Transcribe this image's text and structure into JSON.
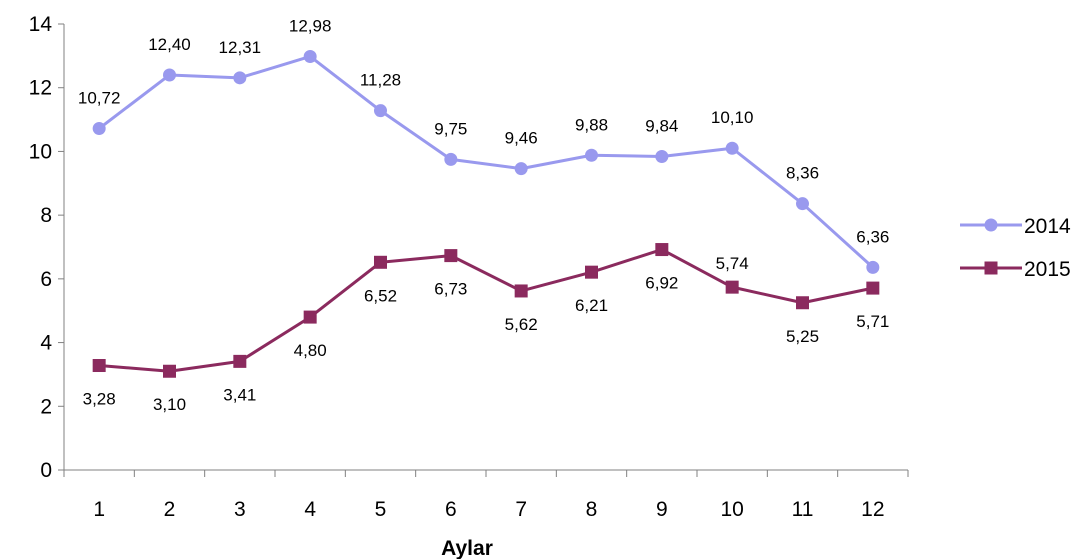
{
  "chart_data": {
    "type": "line",
    "xlabel": "Aylar",
    "categories": [
      "1",
      "2",
      "3",
      "4",
      "5",
      "6",
      "7",
      "8",
      "9",
      "10",
      "11",
      "12"
    ],
    "ylim": [
      0,
      14
    ],
    "yticks": [
      0,
      2,
      4,
      6,
      8,
      10,
      12,
      14
    ],
    "grid": false,
    "legend_position": "right",
    "series": [
      {
        "name": "2014",
        "color": "#9999ee",
        "marker": "circle",
        "values": [
          10.72,
          12.4,
          12.31,
          12.98,
          11.28,
          9.75,
          9.46,
          9.88,
          9.84,
          10.1,
          8.36,
          6.36
        ],
        "labels": [
          "10,72",
          "12,40",
          "12,31",
          "12,98",
          "11,28",
          "9,75",
          "9,46",
          "9,88",
          "9,84",
          "10,10",
          "8,36",
          "6,36"
        ]
      },
      {
        "name": "2015",
        "color": "#8b2a5e",
        "marker": "square",
        "values": [
          3.28,
          3.1,
          3.41,
          4.8,
          6.52,
          6.73,
          5.62,
          6.21,
          6.92,
          5.74,
          5.25,
          5.71
        ],
        "labels": [
          "3,28",
          "3,10",
          "3,41",
          "4,80",
          "6,52",
          "6,73",
          "5,62",
          "6,21",
          "6,92",
          "5,74",
          "5,25",
          "5,71"
        ]
      }
    ]
  }
}
